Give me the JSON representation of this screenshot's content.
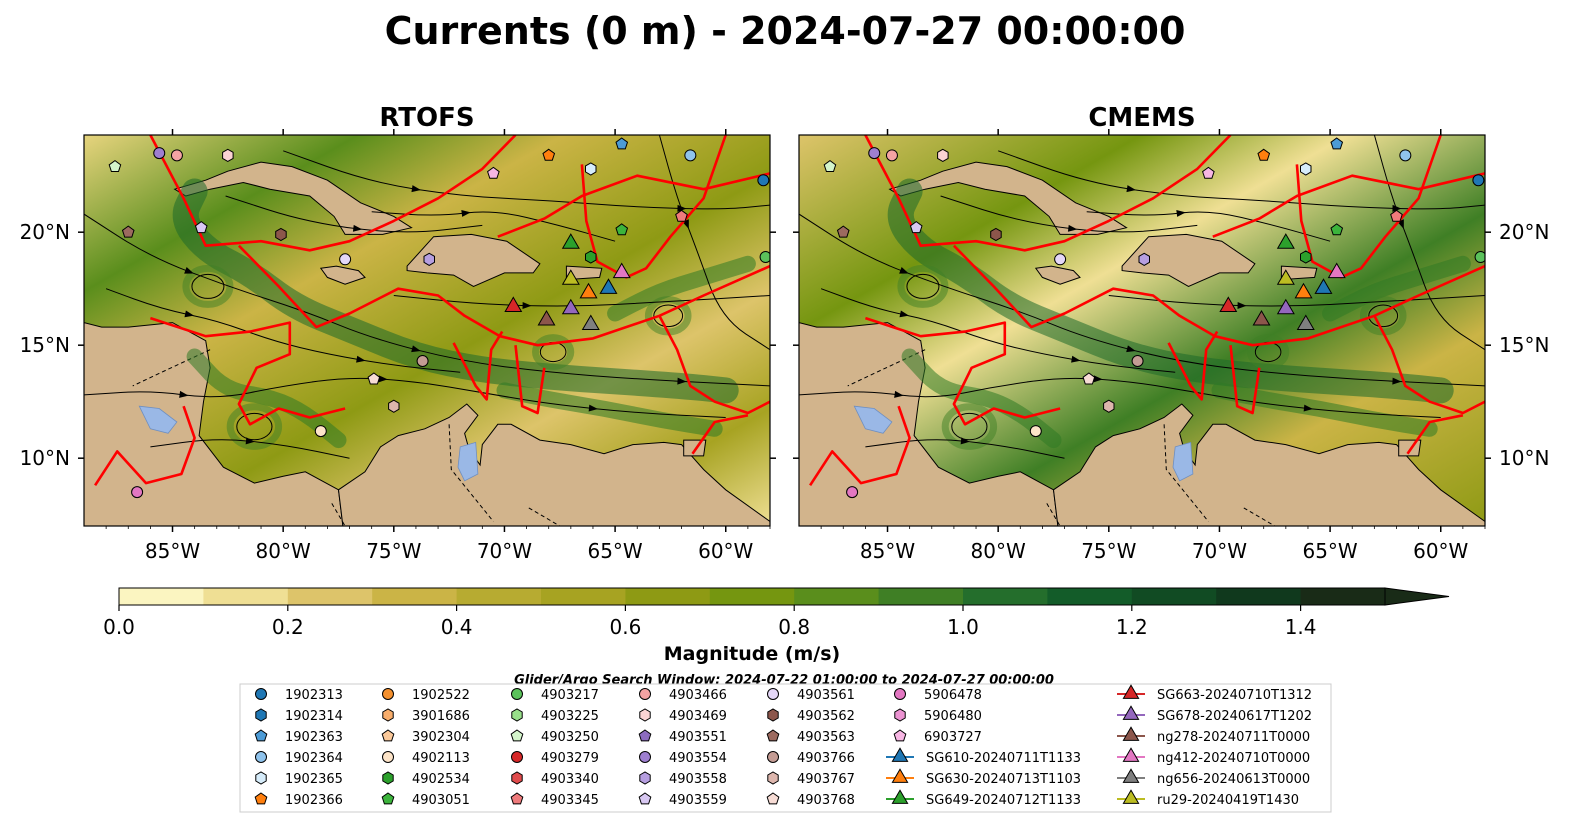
{
  "title": "Currents (0 m) - 2024-07-27 00:00:00",
  "chart_data": {
    "type": "heatmap",
    "title": "Currents (0 m) - 2024-07-27 00:00:00",
    "panels": [
      "RTOFS",
      "CMEMS"
    ],
    "x_ticks": [
      "85°W",
      "80°W",
      "75°W",
      "70°W",
      "65°W",
      "60°W"
    ],
    "x_tick_values": [
      -85,
      -80,
      -75,
      -70,
      -65,
      -60
    ],
    "xlim": [
      -89,
      -58
    ],
    "y_ticks": [
      "20°N",
      "15°N",
      "10°N"
    ],
    "y_tick_values": [
      20,
      15,
      10
    ],
    "ylim": [
      7,
      24.3
    ],
    "colorbar": {
      "label": "Magnitude (m/s)",
      "ticks": [
        "0.0",
        "0.2",
        "0.4",
        "0.6",
        "0.8",
        "1.0",
        "1.2",
        "1.4"
      ],
      "range": [
        0,
        1.5
      ],
      "step": 0.1,
      "extend": "max",
      "colors": [
        "#fbf5c1",
        "#efdf94",
        "#ddc46a",
        "#cbb446",
        "#b7ab31",
        "#a7a322",
        "#8e9a14",
        "#759610",
        "#5a8e1c",
        "#3f7f25",
        "#246e2c",
        "#135c29",
        "#114b23",
        "#10391d",
        "#192b17"
      ]
    },
    "colors": {
      "land": "#d2b48c",
      "water": "#9ab8e6",
      "eez_lines": "#ff0000"
    },
    "legend": {
      "title": "Glider/Argo Search Window: 2024-07-22 01:00:00 to 2024-07-27 00:00:00",
      "placement": "bottom",
      "columns": [
        [
          {
            "label": "1902313",
            "marker": "circle",
            "color": "#1f77b4"
          },
          {
            "label": "1902314",
            "marker": "hexagon",
            "color": "#1f77b4"
          },
          {
            "label": "1902363",
            "marker": "pentagon",
            "color": "#4c9bd6"
          },
          {
            "label": "1902364",
            "marker": "circle",
            "color": "#8fc3ec"
          },
          {
            "label": "1902365",
            "marker": "hexagon",
            "color": "#d6ecfa"
          },
          {
            "label": "1902366",
            "marker": "pentagon",
            "color": "#ff7f0e"
          }
        ],
        [
          {
            "label": "1902522",
            "marker": "circle",
            "color": "#f4902e"
          },
          {
            "label": "3901686",
            "marker": "hexagon",
            "color": "#f8ad6b"
          },
          {
            "label": "3902304",
            "marker": "pentagon",
            "color": "#fbc99a"
          },
          {
            "label": "4902113",
            "marker": "circle",
            "color": "#fde4c8"
          },
          {
            "label": "4902534",
            "marker": "hexagon",
            "color": "#2ca02c"
          },
          {
            "label": "4903051",
            "marker": "pentagon",
            "color": "#3cb43c"
          }
        ],
        [
          {
            "label": "4903217",
            "marker": "circle",
            "color": "#5bc25b"
          },
          {
            "label": "4903225",
            "marker": "hexagon",
            "color": "#98df8a"
          },
          {
            "label": "4903250",
            "marker": "pentagon",
            "color": "#d4f5cb"
          },
          {
            "label": "4903279",
            "marker": "circle",
            "color": "#d62728"
          },
          {
            "label": "4903340",
            "marker": "hexagon",
            "color": "#e04b4c"
          },
          {
            "label": "4903345",
            "marker": "pentagon",
            "color": "#ef7b7c"
          }
        ],
        [
          {
            "label": "4903466",
            "marker": "circle",
            "color": "#f4a3a3"
          },
          {
            "label": "4903469",
            "marker": "hexagon",
            "color": "#fbd3d3"
          },
          {
            "label": "4903551",
            "marker": "pentagon",
            "color": "#8c6bbf"
          },
          {
            "label": "4903554",
            "marker": "circle",
            "color": "#9e7fd0"
          },
          {
            "label": "4903558",
            "marker": "hexagon",
            "color": "#b69ee0"
          },
          {
            "label": "4903559",
            "marker": "pentagon",
            "color": "#d8c8f2"
          }
        ],
        [
          {
            "label": "4903561",
            "marker": "circle",
            "color": "#e4d7f7"
          },
          {
            "label": "4903562",
            "marker": "hexagon",
            "color": "#8c564b"
          },
          {
            "label": "4903563",
            "marker": "pentagon",
            "color": "#9c6a5f"
          },
          {
            "label": "4903766",
            "marker": "circle",
            "color": "#c49c94"
          },
          {
            "label": "4903767",
            "marker": "hexagon",
            "color": "#ddb6ad"
          },
          {
            "label": "4903768",
            "marker": "pentagon",
            "color": "#f7dcd5"
          }
        ],
        [
          {
            "label": "5906478",
            "marker": "circle",
            "color": "#e377c2"
          },
          {
            "label": "5906480",
            "marker": "hexagon",
            "color": "#ec93d2"
          },
          {
            "label": "6903727",
            "marker": "pentagon",
            "color": "#f7b6e3"
          },
          {
            "label": "SG610-20240711T1133",
            "marker": "triangle-line",
            "color": "#1f77b4"
          },
          {
            "label": "SG630-20240713T1103",
            "marker": "triangle-line",
            "color": "#ff7f0e"
          },
          {
            "label": "SG649-20240712T1133",
            "marker": "triangle-line",
            "color": "#2ca02c"
          }
        ],
        [
          {
            "label": "SG663-20240710T1312",
            "marker": "triangle-line",
            "color": "#d62728"
          },
          {
            "label": "SG678-20240617T1202",
            "marker": "triangle-line",
            "color": "#9467bd"
          },
          {
            "label": "ng278-20240711T0000",
            "marker": "triangle-line",
            "color": "#8c564b"
          },
          {
            "label": "ng412-20240710T0000",
            "marker": "triangle-line",
            "color": "#e377c2"
          },
          {
            "label": "ng656-20240613T0000",
            "marker": "triangle-line",
            "color": "#7f7f7f"
          },
          {
            "label": "ru29-20240419T1430",
            "marker": "triangle-line",
            "color": "#bcbd22"
          }
        ]
      ]
    },
    "gliders": [
      {
        "name": "SG610-20240711T1133",
        "lon": -65.3,
        "lat": 17.5,
        "color": "#1f77b4"
      },
      {
        "name": "SG630-20240713T1103",
        "lon": -66.2,
        "lat": 17.3,
        "color": "#ff7f0e"
      },
      {
        "name": "SG649-20240712T1133",
        "lon": -67.0,
        "lat": 19.5,
        "color": "#2ca02c"
      },
      {
        "name": "SG663-20240710T1312",
        "lon": -69.6,
        "lat": 16.7,
        "color": "#d62728"
      },
      {
        "name": "SG678-20240617T1202",
        "lon": -67.0,
        "lat": 16.6,
        "color": "#9467bd"
      },
      {
        "name": "ng278-20240711T0000",
        "lon": -68.1,
        "lat": 16.1,
        "color": "#8c564b"
      },
      {
        "name": "ng412-20240710T0000",
        "lon": -64.7,
        "lat": 18.2,
        "color": "#e377c2"
      },
      {
        "name": "ng656-20240613T0000",
        "lon": -66.1,
        "lat": 15.9,
        "color": "#7f7f7f"
      },
      {
        "name": "ru29-20240419T1430",
        "lon": -67.0,
        "lat": 17.9,
        "color": "#bcbd22"
      }
    ],
    "floats": [
      {
        "name": "1902313",
        "lon": -58.3,
        "lat": 22.3,
        "marker": "circle",
        "color": "#1f77b4"
      },
      {
        "name": "1902363",
        "lon": -64.7,
        "lat": 23.9,
        "marker": "pentagon",
        "color": "#4c9bd6"
      },
      {
        "name": "1902364",
        "lon": -61.6,
        "lat": 23.4,
        "marker": "circle",
        "color": "#8fc3ec"
      },
      {
        "name": "1902365",
        "lon": -66.1,
        "lat": 22.8,
        "marker": "hexagon",
        "color": "#d6ecfa"
      },
      {
        "name": "1902366",
        "lon": -68.0,
        "lat": 23.4,
        "marker": "pentagon",
        "color": "#ff7f0e"
      },
      {
        "name": "4903250",
        "lon": -87.6,
        "lat": 22.9,
        "marker": "pentagon",
        "color": "#d4f5cb"
      },
      {
        "name": "4903554",
        "lon": -85.6,
        "lat": 23.5,
        "marker": "circle",
        "color": "#9e7fd0"
      },
      {
        "name": "4903466",
        "lon": -84.8,
        "lat": 23.4,
        "marker": "circle",
        "color": "#f4a3a3"
      },
      {
        "name": "4903469",
        "lon": -82.5,
        "lat": 23.4,
        "marker": "hexagon",
        "color": "#fbd3d3"
      },
      {
        "name": "6903727",
        "lon": -70.5,
        "lat": 22.6,
        "marker": "pentagon",
        "color": "#f7b6e3"
      },
      {
        "name": "4903345",
        "lon": -62.0,
        "lat": 20.7,
        "marker": "pentagon",
        "color": "#ef7b7c"
      },
      {
        "name": "4902534",
        "lon": -66.1,
        "lat": 18.9,
        "marker": "hexagon",
        "color": "#2ca02c"
      },
      {
        "name": "4903051",
        "lon": -64.7,
        "lat": 20.1,
        "marker": "pentagon",
        "color": "#3cb43c"
      },
      {
        "name": "4903217",
        "lon": -58.2,
        "lat": 18.9,
        "marker": "circle",
        "color": "#5bc25b"
      },
      {
        "name": "4903563",
        "lon": -87.0,
        "lat": 20.0,
        "marker": "pentagon",
        "color": "#9c6a5f"
      },
      {
        "name": "4903559",
        "lon": -83.7,
        "lat": 20.2,
        "marker": "pentagon",
        "color": "#d8c8f2"
      },
      {
        "name": "4903562",
        "lon": -80.1,
        "lat": 19.9,
        "marker": "hexagon",
        "color": "#8c564b"
      },
      {
        "name": "4903561",
        "lon": -77.2,
        "lat": 18.8,
        "marker": "circle",
        "color": "#e4d7f7"
      },
      {
        "name": "4903558",
        "lon": -73.4,
        "lat": 18.8,
        "marker": "hexagon",
        "color": "#b69ee0"
      },
      {
        "name": "4903766",
        "lon": -73.7,
        "lat": 14.3,
        "marker": "circle",
        "color": "#c49c94"
      },
      {
        "name": "4903768",
        "lon": -75.9,
        "lat": 13.5,
        "marker": "pentagon",
        "color": "#f7dcd5"
      },
      {
        "name": "4903767",
        "lon": -75.0,
        "lat": 12.3,
        "marker": "hexagon",
        "color": "#ddb6ad"
      },
      {
        "name": "4902113",
        "lon": -78.3,
        "lat": 11.2,
        "marker": "circle",
        "color": "#fde4c8"
      },
      {
        "name": "5906478",
        "lon": -86.6,
        "lat": 8.5,
        "marker": "circle",
        "color": "#e377c2"
      }
    ]
  }
}
